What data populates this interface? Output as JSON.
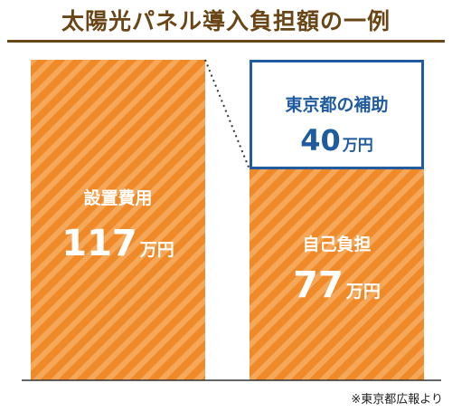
{
  "title": "太陽光パネル導入負担額の一例",
  "source_note": "※東京都広報より",
  "colors": {
    "title": "#6a4616",
    "bar_fill": "#f08a28",
    "bar_stripe": "#f6a85a",
    "subsidy_border": "#1f5b9e",
    "subsidy_text": "#1f5b9e",
    "bar_text": "#ffffff",
    "axis": "#333333"
  },
  "chart_data": {
    "type": "bar",
    "title": "太陽光パネル導入負担額の一例",
    "unit": "万円",
    "ylim": [
      0,
      117
    ],
    "bars": [
      {
        "label": "設置費用",
        "value": 117,
        "value_text": "117",
        "unit_text": "万円"
      },
      {
        "label": "自己負担",
        "value": 77,
        "value_text": "77",
        "unit_text": "万円",
        "stacked_top": {
          "label": "東京都の補助",
          "value": 40,
          "value_text": "40",
          "unit_text": "万円"
        }
      }
    ]
  }
}
